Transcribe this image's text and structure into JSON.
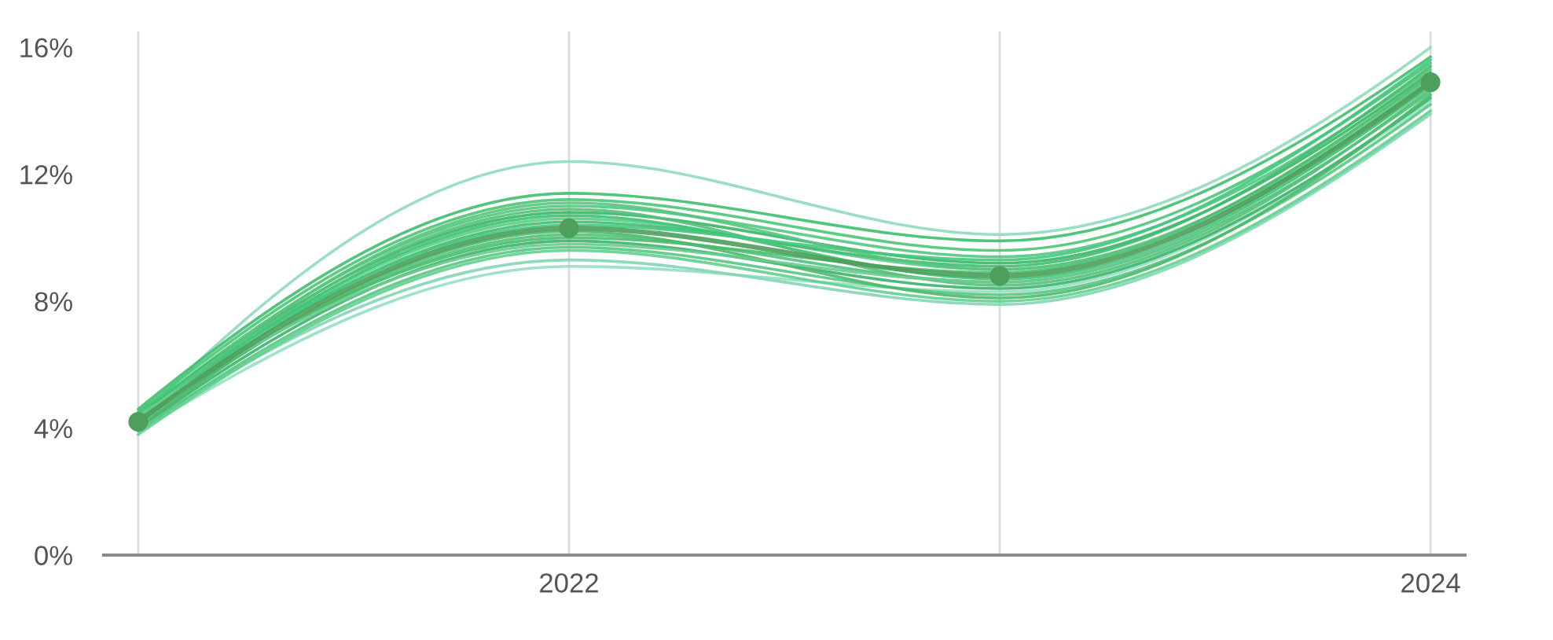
{
  "chart_data": {
    "type": "line",
    "x": [
      2021,
      2022,
      2023,
      2024
    ],
    "xlim": [
      2020.92,
      2024.08
    ],
    "xticks": [
      {
        "value": 2021,
        "label": null
      },
      2022,
      {
        "value": 2023,
        "label": null
      },
      2024
    ],
    "ylim": [
      0,
      16.5
    ],
    "yticks": [
      {
        "value": 0,
        "label": "0%"
      },
      {
        "value": 4,
        "label": "4%"
      },
      {
        "value": 8,
        "label": "8%"
      },
      {
        "value": 12,
        "label": "12%"
      },
      {
        "value": 16,
        "label": "16%"
      }
    ],
    "grid": "x",
    "series": [
      {
        "color": "#8fdcbc",
        "values": [
          4.3,
          12.4,
          10.1,
          16.0
        ]
      },
      {
        "color": "#96dfc3",
        "values": [
          3.9,
          9.1,
          8.3,
          14.3
        ]
      },
      {
        "color": "#82d6b2",
        "values": [
          4.0,
          9.3,
          7.9,
          13.9
        ]
      },
      {
        "color": "#3fbf6e",
        "values": [
          4.6,
          11.4,
          9.9,
          15.7
        ]
      },
      {
        "color": "#4ac577",
        "values": [
          4.5,
          11.2,
          9.6,
          15.5
        ]
      },
      {
        "color": "#52c97f",
        "values": [
          4.4,
          11.0,
          9.4,
          15.3
        ]
      },
      {
        "color": "#36b865",
        "values": [
          4.4,
          10.8,
          9.2,
          15.2
        ]
      },
      {
        "color": "#5ccd88",
        "values": [
          4.3,
          10.6,
          9.0,
          15.0
        ]
      },
      {
        "color": "#44bb70",
        "values": [
          4.2,
          10.5,
          9.1,
          15.4
        ]
      },
      {
        "color": "#4fc27c",
        "values": [
          4.1,
          10.1,
          8.6,
          14.6
        ]
      },
      {
        "color": "#3ab46a",
        "values": [
          4.0,
          9.9,
          8.4,
          14.4
        ]
      },
      {
        "color": "#58c683",
        "values": [
          3.9,
          9.7,
          8.2,
          14.2
        ]
      },
      {
        "color": "#61d08e",
        "values": [
          3.8,
          9.6,
          8.0,
          14.0
        ]
      },
      {
        "color": "#3dc274",
        "values": [
          4.2,
          10.7,
          8.7,
          14.8
        ]
      },
      {
        "color": "#49bd6c",
        "values": [
          4.3,
          10.0,
          8.9,
          15.1
        ]
      },
      {
        "color": "#55c078",
        "values": [
          4.1,
          10.9,
          8.5,
          14.7
        ]
      },
      {
        "color": "#42c880",
        "values": [
          4.5,
          10.4,
          9.3,
          15.6
        ]
      },
      {
        "color": "#4cb96a",
        "values": [
          4.0,
          10.2,
          8.1,
          14.5
        ]
      },
      {
        "color": "#5ac47e",
        "values": [
          4.2,
          11.1,
          9.0,
          14.9
        ]
      },
      {
        "color": "#6acb8f",
        "values": [
          4.4,
          9.8,
          8.6,
          15.0
        ]
      },
      {
        "color": "#4e9f5c",
        "marker": "circle",
        "values": [
          4.2,
          10.3,
          8.8,
          14.9
        ]
      }
    ]
  }
}
